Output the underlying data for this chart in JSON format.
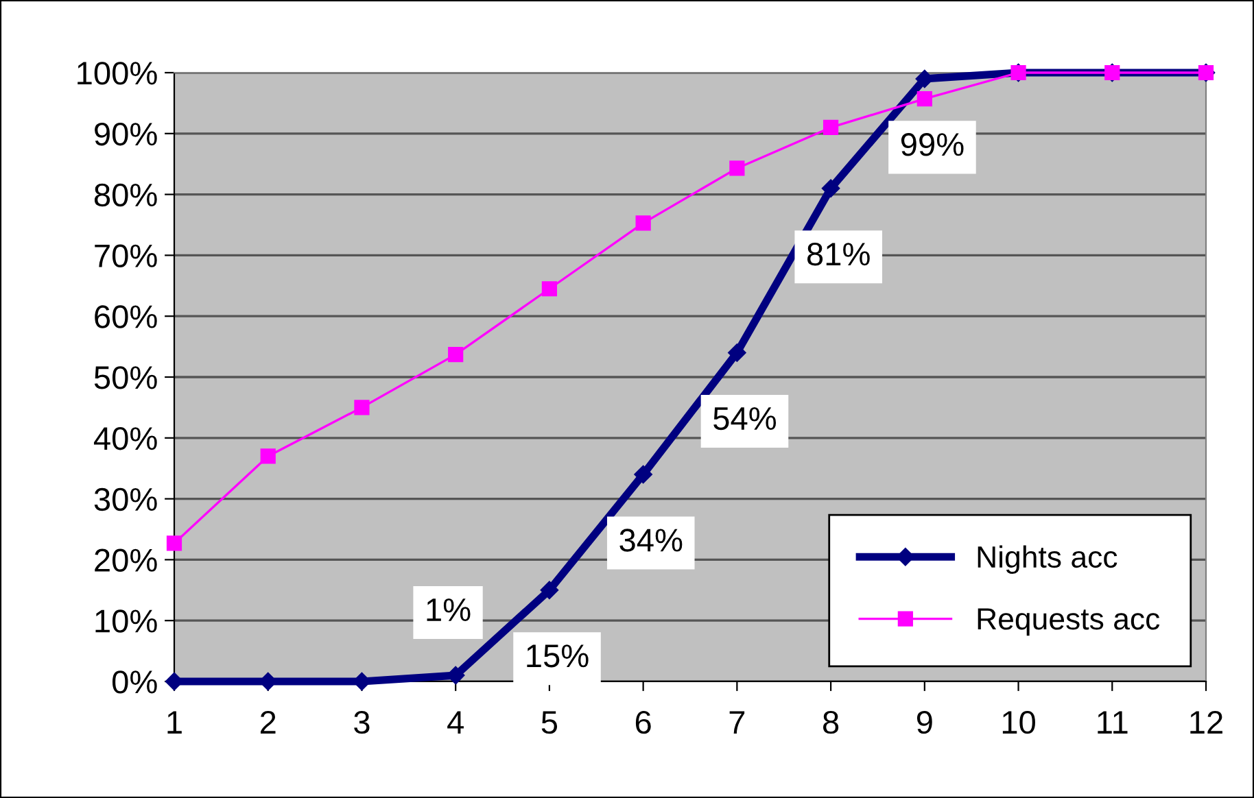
{
  "chart_data": {
    "type": "line",
    "x": [
      1,
      2,
      3,
      4,
      5,
      6,
      7,
      8,
      9,
      10,
      11,
      12
    ],
    "series": [
      {
        "name": "Nights acc",
        "color": "#000080",
        "marker": "diamond",
        "values": [
          0,
          0,
          0,
          1,
          15,
          34,
          54,
          81,
          99,
          100,
          100,
          100
        ],
        "value_labels": [
          null,
          null,
          null,
          "1%",
          "15%",
          "34%",
          "54%",
          "81%",
          "99%",
          null,
          null,
          null
        ]
      },
      {
        "name": "Requests acc",
        "color": "#ff00ff",
        "marker": "square",
        "values": [
          22.7,
          37,
          45,
          53.7,
          64.5,
          75.3,
          84.3,
          91,
          95.7,
          100,
          100,
          100
        ]
      }
    ],
    "xlim": [
      1,
      12
    ],
    "xticks": [
      1,
      2,
      3,
      4,
      5,
      6,
      7,
      8,
      9,
      10,
      11,
      12
    ],
    "ylim": [
      0,
      100
    ],
    "yticks": [
      {
        "value": 0,
        "label": "0%"
      },
      {
        "value": 10,
        "label": "10%"
      },
      {
        "value": 20,
        "label": "20%"
      },
      {
        "value": 30,
        "label": "30%"
      },
      {
        "value": 40,
        "label": "40%"
      },
      {
        "value": 50,
        "label": "50%"
      },
      {
        "value": 60,
        "label": "60%"
      },
      {
        "value": 70,
        "label": "70%"
      },
      {
        "value": 80,
        "label": "80%"
      },
      {
        "value": 90,
        "label": "90%"
      },
      {
        "value": 100,
        "label": "100%"
      }
    ],
    "grid": "y",
    "legend": "bottom right"
  }
}
